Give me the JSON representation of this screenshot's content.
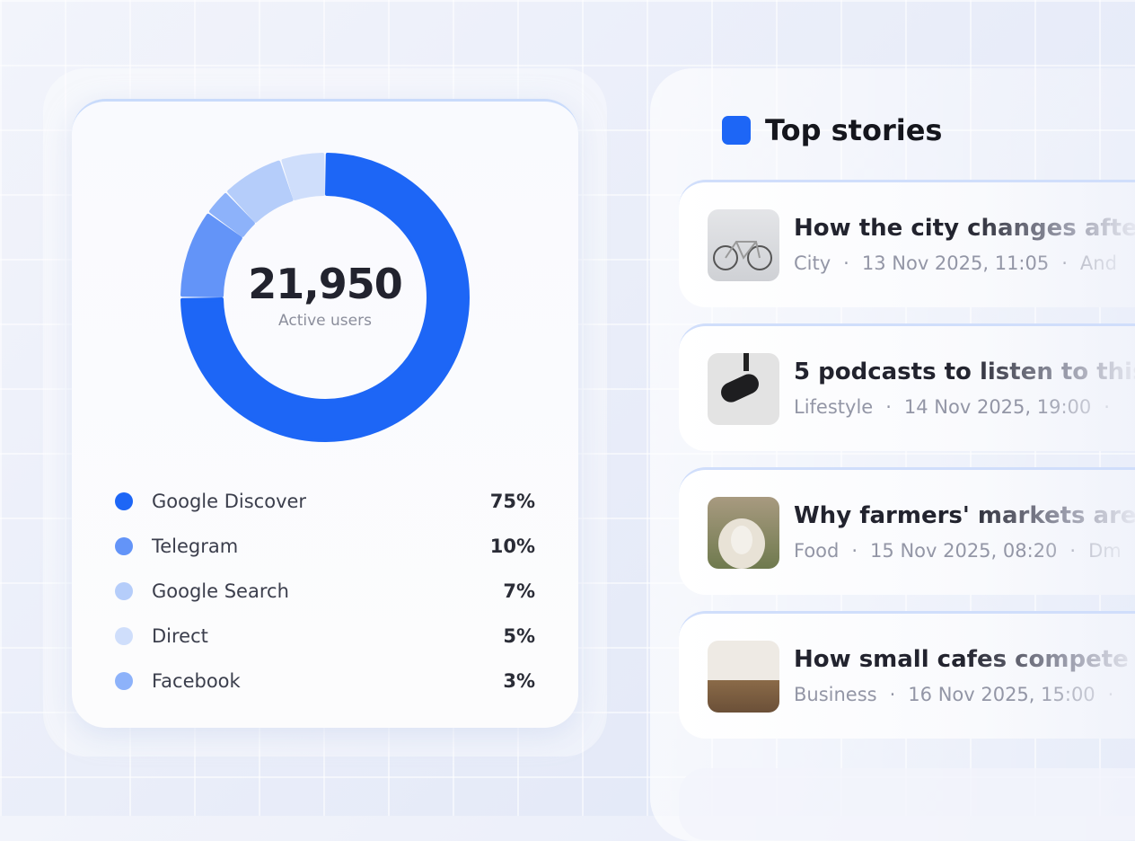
{
  "active_users": {
    "value": "21,950",
    "label": "Active users"
  },
  "chart_data": {
    "type": "pie",
    "categories": [
      "Google Discover",
      "Telegram",
      "Google Search",
      "Direct",
      "Facebook"
    ],
    "values": [
      75,
      10,
      7,
      5,
      3
    ],
    "value_labels": [
      "75%",
      "10%",
      "7%",
      "5%",
      "3%"
    ],
    "colors": [
      "#1d66f6",
      "#6394f8",
      "#b5cdfa",
      "#cfdefb",
      "#8db2fa"
    ],
    "donut": true
  },
  "top_stories": {
    "title": "Top stories",
    "accent": "#1d66f6",
    "items": [
      {
        "title": "How the city changes afte",
        "category": "City",
        "date": "13 Nov 2025, 11:05",
        "author": "And",
        "thumb": "bicycle"
      },
      {
        "title": "5 podcasts to listen to this",
        "category": "Lifestyle",
        "date": "14 Nov 2025, 19:00",
        "author": "",
        "thumb": "microphone"
      },
      {
        "title": "Why farmers' markets are",
        "category": "Food",
        "date": "15 Nov 2025, 08:20",
        "author": "Dm",
        "thumb": "sheep"
      },
      {
        "title": "How small cafes compete",
        "category": "Business",
        "date": "16 Nov 2025, 15:00",
        "author": "",
        "thumb": "cafe"
      }
    ]
  }
}
